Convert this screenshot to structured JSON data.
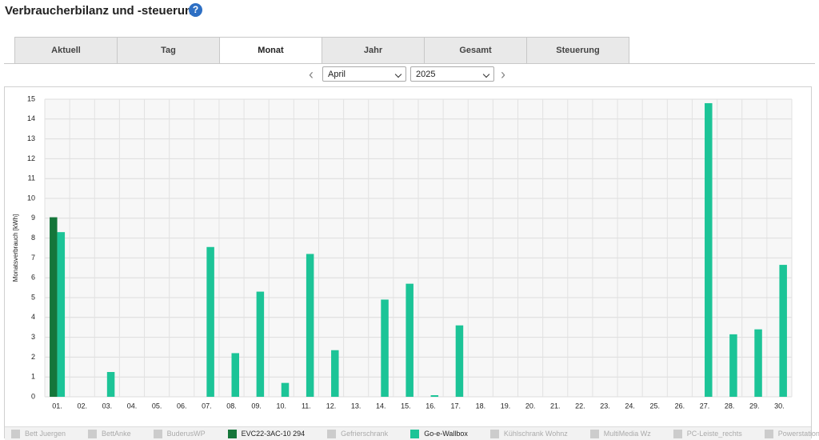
{
  "header": {
    "title": "Verbraucherbilanz und -steuerung"
  },
  "tabs": [
    "Aktuell",
    "Tag",
    "Monat",
    "Jahr",
    "Gesamt",
    "Steuerung"
  ],
  "active_tab": 2,
  "selectors": {
    "month": "April",
    "year": "2025"
  },
  "chart_data": {
    "type": "bar",
    "ylabel": "Monatsverbrauch [kWh]",
    "categories": [
      "01.",
      "02.",
      "03.",
      "04.",
      "05.",
      "06.",
      "07.",
      "08.",
      "09.",
      "10.",
      "11.",
      "12.",
      "13.",
      "14.",
      "15.",
      "16.",
      "17.",
      "18.",
      "19.",
      "20.",
      "21.",
      "22.",
      "23.",
      "24.",
      "25.",
      "26.",
      "27.",
      "28.",
      "29.",
      "30."
    ],
    "ylim": [
      0,
      15
    ],
    "yticks": [
      0,
      1,
      2,
      3,
      4,
      5,
      6,
      7,
      8,
      9,
      10,
      11,
      12,
      13,
      14,
      15
    ],
    "grid": true,
    "series": [
      {
        "name": "Bett Juergen",
        "color": "#cccccc",
        "visible": false
      },
      {
        "name": "BettAnke",
        "color": "#cccccc",
        "visible": false
      },
      {
        "name": "BuderusWP",
        "color": "#cccccc",
        "visible": false
      },
      {
        "name": "EVC22-3AC-10 294",
        "color": "#15763a",
        "visible": true,
        "values": [
          9.05,
          0,
          0,
          0,
          0,
          0,
          0,
          0,
          0,
          0,
          0,
          0,
          0,
          0,
          0,
          0,
          0,
          0,
          0,
          0,
          0,
          0,
          0,
          0,
          0,
          0,
          0,
          0,
          0,
          0
        ]
      },
      {
        "name": "Gefrierschrank",
        "color": "#cccccc",
        "visible": false
      },
      {
        "name": "Go-e-Wallbox",
        "color": "#1cc497",
        "visible": true,
        "values": [
          8.3,
          0,
          1.25,
          0,
          0,
          0,
          7.55,
          2.2,
          5.3,
          0.7,
          7.2,
          2.35,
          0,
          4.9,
          5.7,
          0.08,
          3.6,
          0,
          0,
          0,
          0,
          0,
          0,
          0,
          0,
          0,
          14.8,
          3.15,
          3.4,
          6.65
        ]
      },
      {
        "name": "Kühlschrank Wohnz",
        "color": "#cccccc",
        "visible": false
      },
      {
        "name": "MultiMedia Wz",
        "color": "#cccccc",
        "visible": false
      },
      {
        "name": "PC-Leiste_rechts",
        "color": "#cccccc",
        "visible": false
      },
      {
        "name": "Powerstation",
        "color": "#cccccc",
        "visible": false
      }
    ]
  }
}
